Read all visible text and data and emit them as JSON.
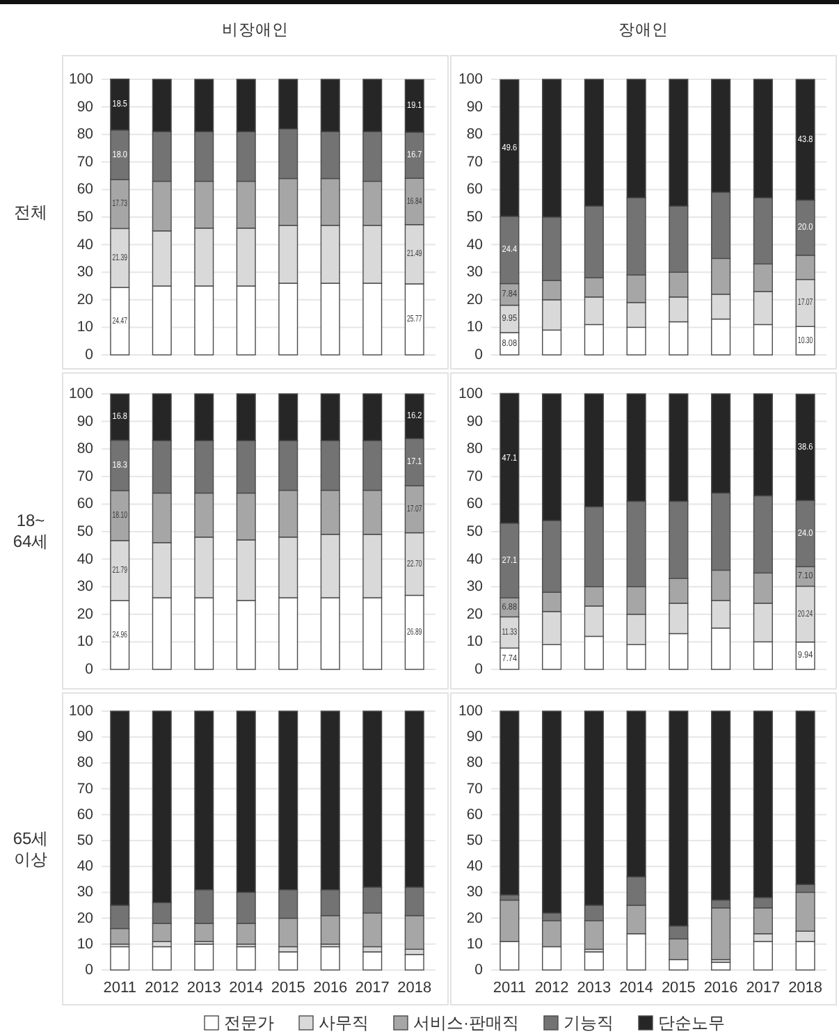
{
  "chart_data": [
    {
      "type": "bar",
      "title": "비장애인",
      "ylabel": "전체",
      "categories": [
        "2011",
        "2012",
        "2013",
        "2014",
        "2015",
        "2016",
        "2017",
        "2018"
      ],
      "stacked": true,
      "grid": "y",
      "tick_labels": "y",
      "legend": "bottom",
      "ylim": [
        0,
        100
      ],
      "yticks": [
        0,
        10,
        20,
        30,
        40,
        50,
        60,
        70,
        80,
        90,
        100
      ],
      "series": [
        {
          "name": "전문가",
          "color": "#ffffff",
          "values": [
            24.47,
            25,
            25,
            25,
            26,
            26,
            26,
            25.77
          ],
          "value_labels": [
            "24.47",
            null,
            null,
            null,
            null,
            null,
            null,
            "25.77"
          ]
        },
        {
          "name": "사무직",
          "color": "#d9d9d9",
          "values": [
            21.39,
            20,
            21,
            21,
            21,
            21,
            21,
            21.49
          ],
          "value_labels": [
            "21.39",
            null,
            null,
            null,
            null,
            null,
            null,
            "21.49"
          ]
        },
        {
          "name": "서비스·판매직",
          "color": "#a6a6a6",
          "values": [
            17.73,
            18,
            17,
            17,
            17,
            17,
            16,
            16.84
          ],
          "value_labels": [
            "17.73",
            null,
            null,
            null,
            null,
            null,
            null,
            "16.84"
          ]
        },
        {
          "name": "기능직",
          "color": "#737373",
          "values": [
            18.0,
            18,
            18,
            18,
            18,
            17,
            18,
            16.7
          ],
          "value_labels": [
            "18.0",
            null,
            null,
            null,
            null,
            null,
            null,
            "16.7"
          ]
        },
        {
          "name": "단순노무",
          "color": "#262626",
          "values": [
            18.5,
            19,
            19,
            19,
            18,
            19,
            19,
            19.1
          ],
          "value_labels": [
            "18.5",
            null,
            null,
            null,
            null,
            null,
            null,
            "19.1"
          ]
        }
      ]
    },
    {
      "type": "bar",
      "title": "장애인",
      "categories": [
        "2011",
        "2012",
        "2013",
        "2014",
        "2015",
        "2016",
        "2017",
        "2018"
      ],
      "stacked": true,
      "grid": "y",
      "tick_labels": "y",
      "ylim": [
        0,
        100
      ],
      "yticks": [
        0,
        10,
        20,
        30,
        40,
        50,
        60,
        70,
        80,
        90,
        100
      ],
      "series": [
        {
          "name": "전문가",
          "color": "#ffffff",
          "values": [
            8.08,
            9,
            11,
            10,
            12,
            13,
            11,
            10.3
          ],
          "value_labels": [
            "8.08",
            null,
            null,
            null,
            null,
            null,
            null,
            "10.30"
          ]
        },
        {
          "name": "사무직",
          "color": "#d9d9d9",
          "values": [
            9.95,
            11,
            10,
            9,
            9,
            9,
            12,
            17.07
          ],
          "value_labels": [
            "9.95",
            null,
            null,
            null,
            null,
            null,
            null,
            "17.07"
          ]
        },
        {
          "name": "서비스·판매직",
          "color": "#a6a6a6",
          "values": [
            7.84,
            7,
            7,
            10,
            9,
            13,
            10,
            8.8
          ],
          "value_labels": [
            "7.84",
            null,
            null,
            null,
            null,
            null,
            null,
            null
          ]
        },
        {
          "name": "기능직",
          "color": "#737373",
          "values": [
            24.4,
            23,
            26,
            28,
            24,
            24,
            24,
            20.0
          ],
          "value_labels": [
            "24.4",
            null,
            null,
            null,
            null,
            null,
            null,
            "20.0"
          ]
        },
        {
          "name": "단순노무",
          "color": "#262626",
          "values": [
            49.6,
            50,
            46,
            43,
            46,
            41,
            43,
            43.8
          ],
          "value_labels": [
            "49.6",
            null,
            null,
            null,
            null,
            null,
            null,
            "43.8"
          ]
        }
      ]
    },
    {
      "type": "bar",
      "ylabel": "18~64세",
      "categories": [
        "2011",
        "2012",
        "2013",
        "2014",
        "2015",
        "2016",
        "2017",
        "2018"
      ],
      "stacked": true,
      "grid": "y",
      "tick_labels": "y",
      "ylim": [
        0,
        100
      ],
      "yticks": [
        0,
        10,
        20,
        30,
        40,
        50,
        60,
        70,
        80,
        90,
        100
      ],
      "series": [
        {
          "name": "전문가",
          "color": "#ffffff",
          "values": [
            24.96,
            26,
            26,
            25,
            26,
            26,
            26,
            26.89
          ],
          "value_labels": [
            "24.96",
            null,
            null,
            null,
            null,
            null,
            null,
            "26.89"
          ]
        },
        {
          "name": "사무직",
          "color": "#d9d9d9",
          "values": [
            21.79,
            20,
            22,
            22,
            22,
            23,
            23,
            22.7
          ],
          "value_labels": [
            "21.79",
            null,
            null,
            null,
            null,
            null,
            null,
            "22.70"
          ]
        },
        {
          "name": "서비스·판매직",
          "color": "#a6a6a6",
          "values": [
            18.1,
            18,
            16,
            17,
            17,
            16,
            16,
            17.07
          ],
          "value_labels": [
            "18.10",
            null,
            null,
            null,
            null,
            null,
            null,
            "17.07"
          ]
        },
        {
          "name": "기능직",
          "color": "#737373",
          "values": [
            18.3,
            19,
            19,
            19,
            18,
            18,
            18,
            17.1
          ],
          "value_labels": [
            "18.3",
            null,
            null,
            null,
            null,
            null,
            null,
            "17.1"
          ]
        },
        {
          "name": "단순노무",
          "color": "#262626",
          "values": [
            16.8,
            17,
            17,
            17,
            17,
            17,
            17,
            16.2
          ],
          "value_labels": [
            "16.8",
            null,
            null,
            null,
            null,
            null,
            null,
            "16.2"
          ]
        }
      ]
    },
    {
      "type": "bar",
      "categories": [
        "2011",
        "2012",
        "2013",
        "2014",
        "2015",
        "2016",
        "2017",
        "2018"
      ],
      "stacked": true,
      "grid": "y",
      "tick_labels": "y",
      "ylim": [
        0,
        100
      ],
      "yticks": [
        0,
        10,
        20,
        30,
        40,
        50,
        60,
        70,
        80,
        90,
        100
      ],
      "series": [
        {
          "name": "전문가",
          "color": "#ffffff",
          "values": [
            7.74,
            9,
            12,
            9,
            13,
            15,
            10,
            9.94
          ],
          "value_labels": [
            "7.74",
            null,
            null,
            null,
            null,
            null,
            null,
            "9.94"
          ]
        },
        {
          "name": "사무직",
          "color": "#d9d9d9",
          "values": [
            11.33,
            12,
            11,
            11,
            11,
            10,
            14,
            20.24
          ],
          "value_labels": [
            "11.33",
            null,
            null,
            null,
            null,
            null,
            null,
            "20.24"
          ]
        },
        {
          "name": "서비스·판매직",
          "color": "#a6a6a6",
          "values": [
            6.88,
            7,
            7,
            10,
            9,
            11,
            11,
            7.1
          ],
          "value_labels": [
            "6.88",
            null,
            null,
            null,
            null,
            null,
            null,
            "7.10"
          ]
        },
        {
          "name": "기능직",
          "color": "#737373",
          "values": [
            27.1,
            26,
            29,
            31,
            28,
            28,
            28,
            24.0
          ],
          "value_labels": [
            "27.1",
            null,
            null,
            null,
            null,
            null,
            null,
            "24.0"
          ]
        },
        {
          "name": "단순노무",
          "color": "#262626",
          "values": [
            47.1,
            46,
            41,
            39,
            39,
            36,
            37,
            38.6
          ],
          "value_labels": [
            "47.1",
            null,
            null,
            null,
            null,
            null,
            null,
            "38.6"
          ]
        }
      ]
    },
    {
      "type": "bar",
      "ylabel": "65세 이상",
      "categories": [
        "2011",
        "2012",
        "2013",
        "2014",
        "2015",
        "2016",
        "2017",
        "2018"
      ],
      "stacked": true,
      "grid": "y",
      "ylim": [
        0,
        100
      ],
      "yticks": [
        0,
        10,
        20,
        30,
        40,
        50,
        60,
        70,
        80,
        90,
        100
      ],
      "series": [
        {
          "name": "전문가",
          "color": "#ffffff",
          "values": [
            9,
            9,
            10,
            9,
            7,
            9,
            7,
            6
          ]
        },
        {
          "name": "사무직",
          "color": "#d9d9d9",
          "values": [
            1,
            2,
            1,
            1,
            2,
            1,
            2,
            2
          ]
        },
        {
          "name": "서비스·판매직",
          "color": "#a6a6a6",
          "values": [
            6,
            7,
            7,
            8,
            11,
            11,
            13,
            13
          ]
        },
        {
          "name": "기능직",
          "color": "#737373",
          "values": [
            9,
            8,
            13,
            12,
            11,
            10,
            10,
            11
          ]
        },
        {
          "name": "단순노무",
          "color": "#262626",
          "values": [
            75,
            74,
            69,
            70,
            69,
            69,
            68,
            68
          ]
        }
      ]
    },
    {
      "type": "bar",
      "categories": [
        "2011",
        "2012",
        "2013",
        "2014",
        "2015",
        "2016",
        "2017",
        "2018"
      ],
      "stacked": true,
      "grid": "y",
      "ylim": [
        0,
        100
      ],
      "yticks": [
        0,
        10,
        20,
        30,
        40,
        50,
        60,
        70,
        80,
        90,
        100
      ],
      "series": [
        {
          "name": "전문가",
          "color": "#ffffff",
          "values": [
            11,
            9,
            7,
            14,
            4,
            3,
            11,
            11
          ]
        },
        {
          "name": "사무직",
          "color": "#d9d9d9",
          "values": [
            0,
            0,
            1,
            0,
            0,
            1,
            3,
            4
          ]
        },
        {
          "name": "서비스·판매직",
          "color": "#a6a6a6",
          "values": [
            16,
            10,
            11,
            11,
            8,
            20,
            10,
            15
          ]
        },
        {
          "name": "기능직",
          "color": "#737373",
          "values": [
            2,
            3,
            6,
            11,
            5,
            3,
            4,
            3
          ]
        },
        {
          "name": "단순노무",
          "color": "#262626",
          "values": [
            71,
            78,
            75,
            64,
            83,
            73,
            72,
            67
          ]
        }
      ]
    }
  ]
}
